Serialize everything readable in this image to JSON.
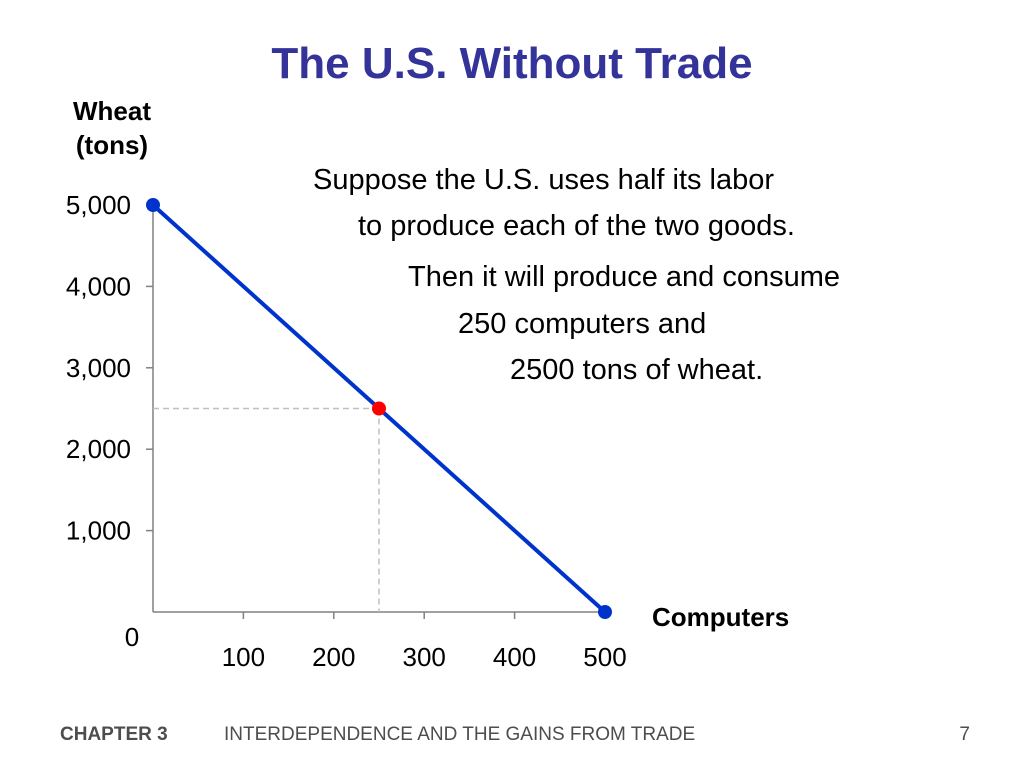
{
  "slide": {
    "title": "The U.S. Without Trade"
  },
  "notes": [
    "Suppose the U.S. uses half its labor",
    "to produce each of the two goods.",
    "Then it will produce and consume",
    "250 computers  and",
    "2500 tons of wheat."
  ],
  "footer": {
    "chapter": "CHAPTER 3",
    "title": "INTERDEPENDENCE AND THE GAINS FROM TRADE",
    "page": "7"
  },
  "colors": {
    "title": "#333399",
    "line": "#0033cc",
    "endpoint": "#0033cc",
    "highlight_point": "#ff0000",
    "guide": "#bfbfbf",
    "axis": "#808080"
  },
  "chart_data": {
    "type": "line",
    "xlabel": "Computers",
    "ylabel_lines": [
      "Wheat",
      "(tons)"
    ],
    "xlim": [
      0,
      500
    ],
    "ylim": [
      0,
      5000
    ],
    "x_ticks": [
      100,
      200,
      300,
      400,
      500
    ],
    "x_tick_labels": [
      "100",
      "200",
      "300",
      "400",
      "500"
    ],
    "y_ticks": [
      1000,
      2000,
      3000,
      4000,
      5000
    ],
    "y_tick_labels": [
      "1,000",
      "2,000",
      "3,000",
      "4,000",
      "5,000"
    ],
    "origin_label": "0",
    "grid": false,
    "series": [
      {
        "points": [
          {
            "x": 0,
            "y": 5000
          },
          {
            "x": 500,
            "y": 0
          }
        ]
      }
    ],
    "highlight": {
      "x": 250,
      "y": 2500
    }
  }
}
